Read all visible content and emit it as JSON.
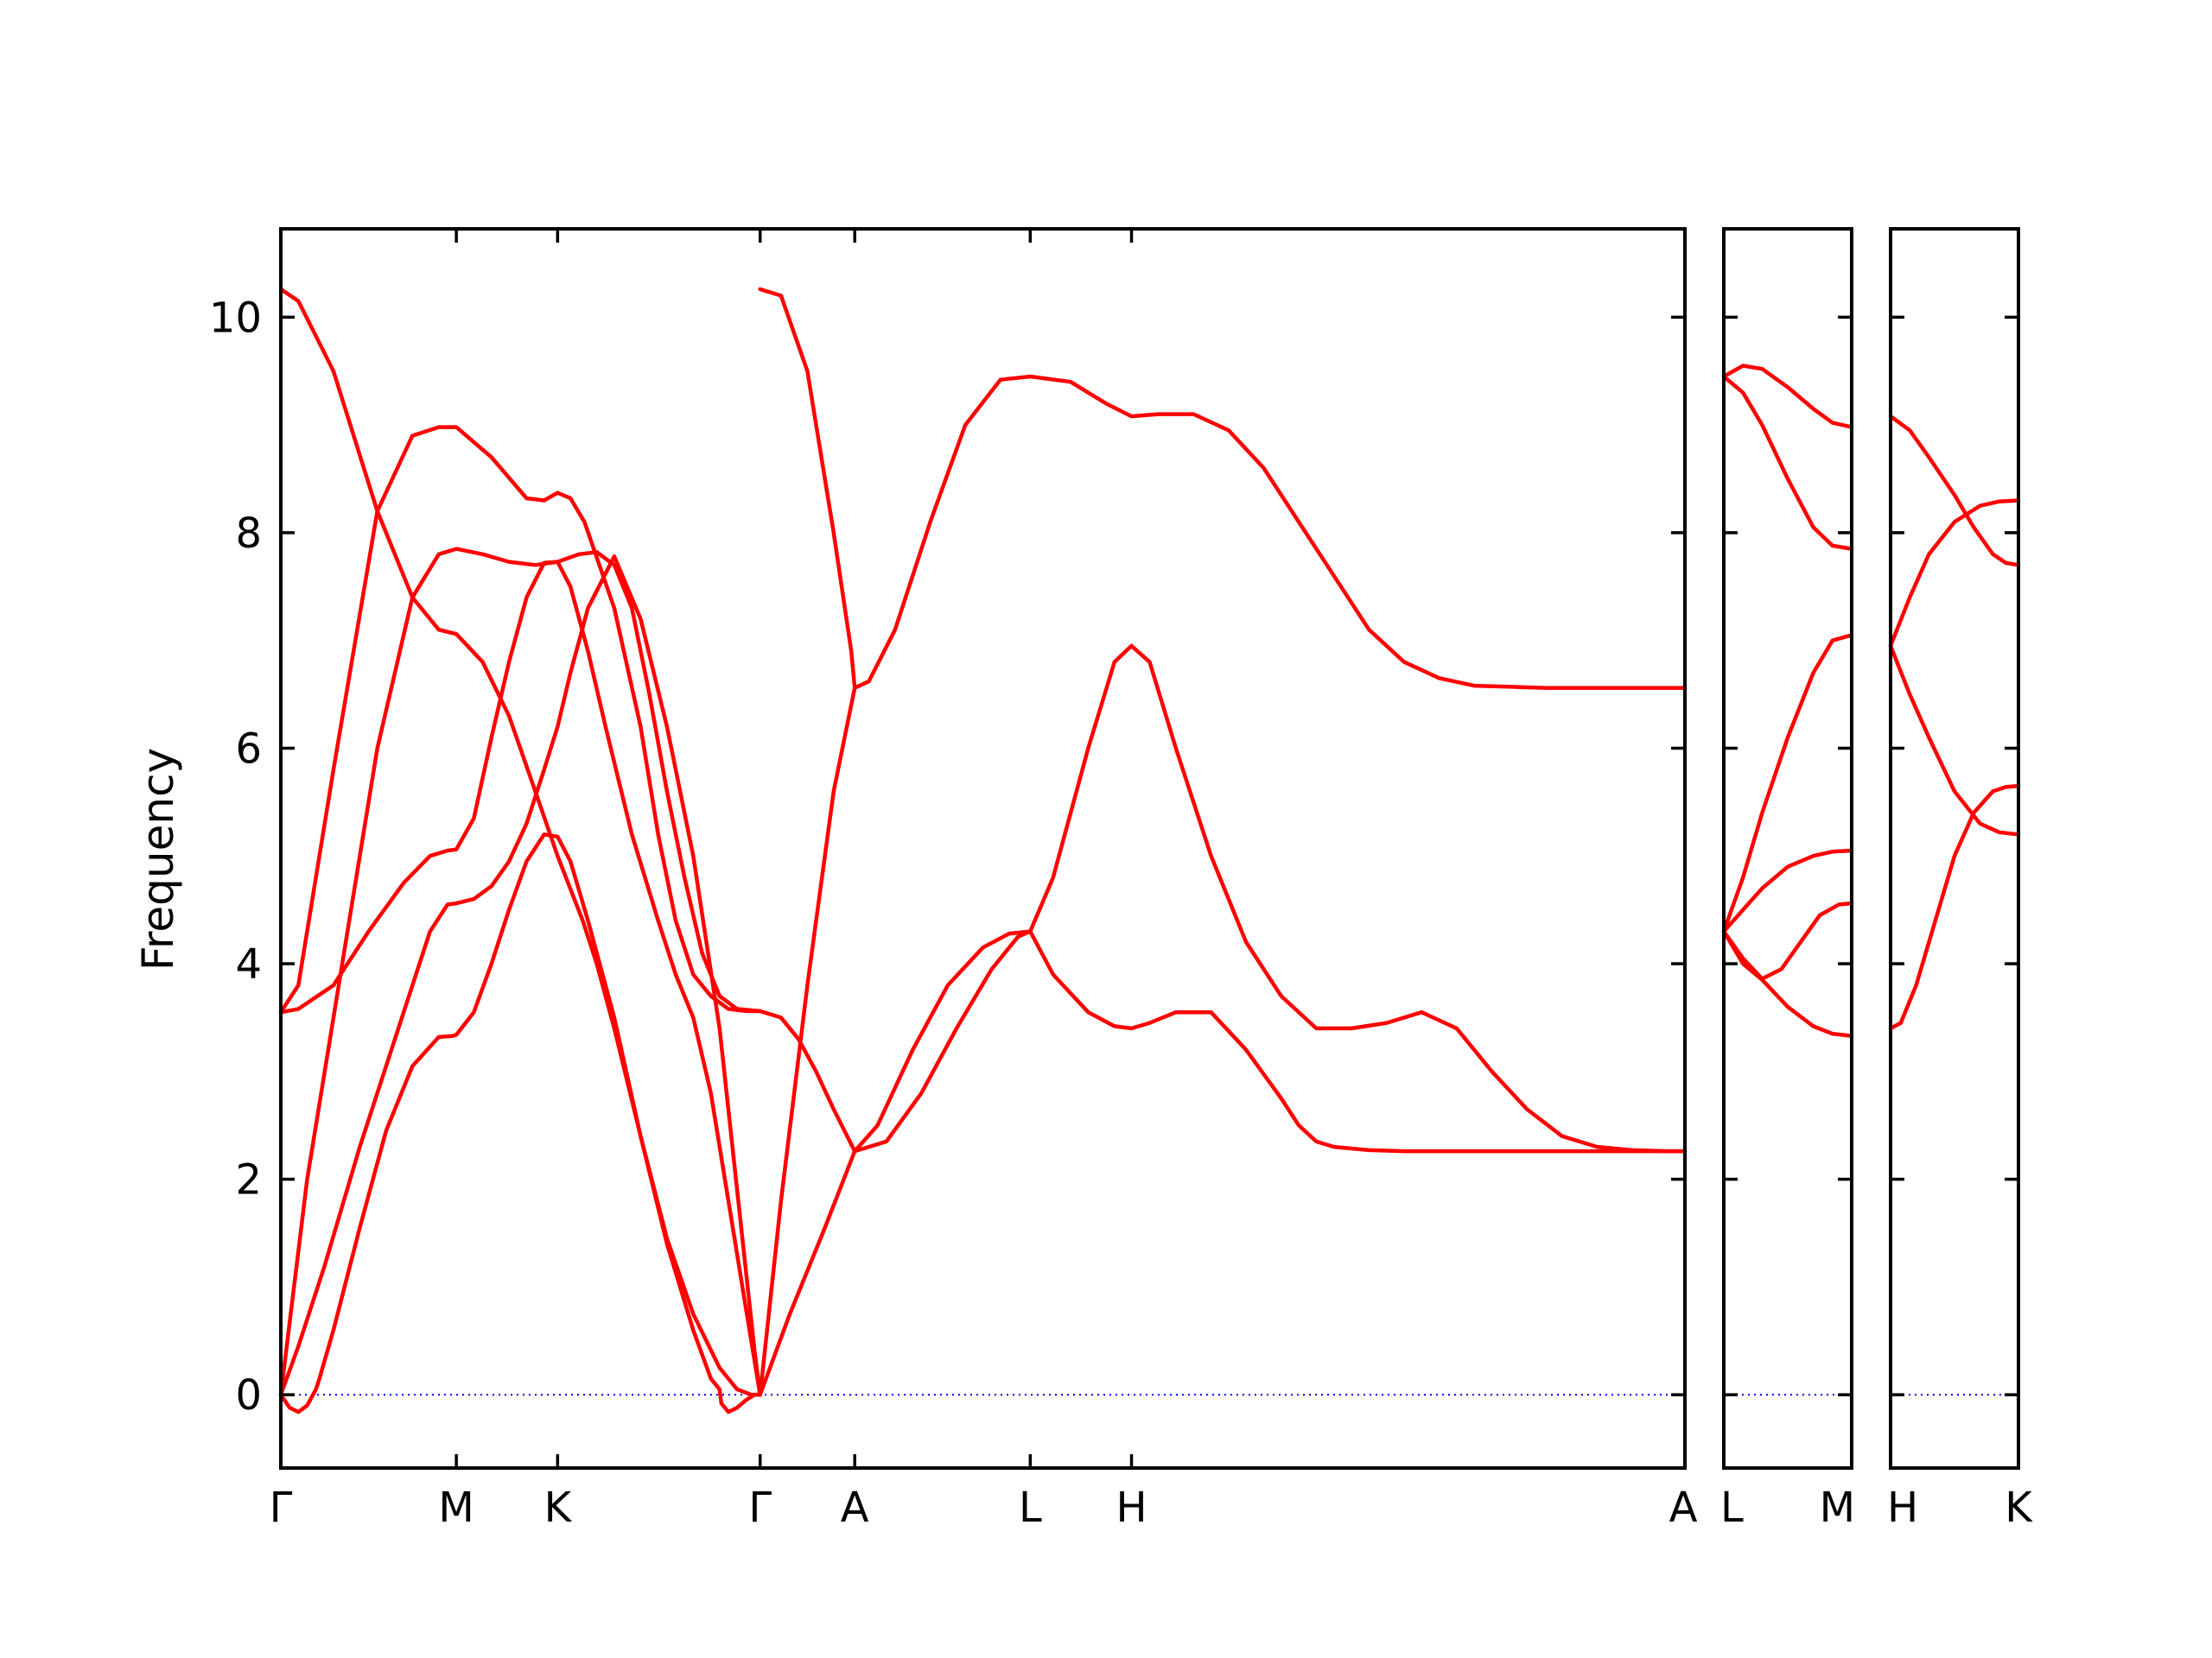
{
  "chart_data": {
    "type": "line",
    "ylabel": "Frequency",
    "xlabel": "",
    "ylim": [
      -0.68,
      10.82
    ],
    "yticks": [
      0,
      2,
      4,
      6,
      8,
      10
    ],
    "ytick_labels": [
      "0",
      "2",
      "4",
      "6",
      "8",
      "10"
    ],
    "grid": false,
    "line_color": "#ff0000",
    "zero_line_color": "#0000ff",
    "panels": [
      {
        "name": "panel-main",
        "xlim": [
          0,
          8
        ],
        "xticks": [
          0,
          1,
          1.577,
          2.731,
          3.27,
          4.27,
          4.847,
          8
        ],
        "xtick_labels": [
          "Γ",
          "M",
          "K",
          "Γ",
          "A",
          "L",
          "H",
          "A"
        ],
        "series": [
          {
            "x": [
              0,
              0.1,
              0.3,
              0.55,
              0.75,
              0.9,
              1.0,
              1.15,
              1.3,
              1.45,
              1.577,
              1.72,
              1.8,
              1.9,
              2.05,
              2.2,
              2.35,
              2.5,
              2.6,
              2.68,
              2.731
            ],
            "y": [
              10.26,
              10.15,
              9.5,
              8.2,
              7.4,
              7.1,
              7.06,
              6.8,
              6.3,
              5.6,
              5.0,
              4.4,
              4.0,
              3.4,
              2.4,
              1.45,
              0.75,
              0.25,
              0.05,
              0.0,
              0.0
            ]
          },
          {
            "x": [
              0,
              0.1,
              0.3,
              0.55,
              0.75,
              0.9,
              1.0,
              1.2,
              1.4,
              1.5,
              1.577,
              1.65,
              1.73,
              1.9,
              2.05,
              2.15,
              2.25,
              2.35,
              2.45,
              2.55,
              2.65,
              2.731
            ],
            "y": [
              3.55,
              3.8,
              5.8,
              8.2,
              8.9,
              8.98,
              8.98,
              8.7,
              8.32,
              8.3,
              8.37,
              8.32,
              8.1,
              7.3,
              6.2,
              5.2,
              4.4,
              3.9,
              3.7,
              3.58,
              3.56,
              3.56
            ]
          },
          {
            "x": [
              0,
              0.15,
              0.35,
              0.55,
              0.75,
              0.9,
              1.0,
              1.15,
              1.3,
              1.45,
              1.577,
              1.7,
              1.8,
              1.9,
              2.0,
              2.1,
              2.2,
              2.3,
              2.4,
              2.5,
              2.6,
              2.731
            ],
            "y": [
              0.0,
              2.0,
              4.0,
              6.0,
              7.4,
              7.8,
              7.85,
              7.8,
              7.73,
              7.7,
              7.73,
              7.8,
              7.82,
              7.7,
              7.3,
              6.5,
              5.6,
              4.8,
              4.1,
              3.7,
              3.58,
              3.56
            ]
          },
          {
            "x": [
              0,
              0.1,
              0.3,
              0.5,
              0.7,
              0.85,
              0.95,
              1.0,
              1.1,
              1.2,
              1.3,
              1.4,
              1.5,
              1.577,
              1.65,
              1.75,
              1.85,
              2.0,
              2.15,
              2.25,
              2.35,
              2.45,
              2.55,
              2.65,
              2.731
            ],
            "y": [
              3.55,
              3.58,
              3.8,
              4.3,
              4.75,
              5.0,
              5.05,
              5.06,
              5.35,
              6.1,
              6.8,
              7.4,
              7.72,
              7.73,
              7.5,
              6.9,
              6.2,
              5.2,
              4.4,
              3.9,
              3.5,
              2.8,
              1.8,
              0.8,
              0.0
            ]
          },
          {
            "x": [
              0,
              0.1,
              0.25,
              0.45,
              0.65,
              0.85,
              0.95,
              1.0,
              1.1,
              1.2,
              1.3,
              1.4,
              1.5,
              1.577,
              1.65,
              1.75,
              1.9,
              2.05,
              2.2,
              2.35,
              2.5,
              2.6,
              2.7,
              2.731
            ],
            "y": [
              0.0,
              0.45,
              1.2,
              2.3,
              3.3,
              4.3,
              4.55,
              4.56,
              4.6,
              4.72,
              4.95,
              5.3,
              5.8,
              6.2,
              6.7,
              7.3,
              7.78,
              7.2,
              6.2,
              5.0,
              3.4,
              1.9,
              0.4,
              0.0
            ]
          },
          {
            "x": [
              0,
              0.05,
              0.1,
              0.15,
              0.2,
              0.22,
              0.3,
              0.45,
              0.6,
              0.75,
              0.9,
              0.98,
              1.0,
              1.1,
              1.2,
              1.3,
              1.4,
              1.5,
              1.577,
              1.65,
              1.75,
              1.9,
              2.05,
              2.2,
              2.35,
              2.45,
              2.5,
              2.51,
              2.55,
              2.6,
              2.65,
              2.7,
              2.731
            ],
            "y": [
              0.0,
              -0.12,
              -0.16,
              -0.1,
              0.05,
              0.15,
              0.6,
              1.55,
              2.45,
              3.05,
              3.32,
              3.33,
              3.34,
              3.55,
              4.0,
              4.5,
              4.95,
              5.2,
              5.18,
              4.95,
              4.4,
              3.5,
              2.4,
              1.4,
              0.6,
              0.15,
              0.05,
              -0.08,
              -0.16,
              -0.12,
              -0.05,
              0.0,
              0.0
            ]
          },
          {
            "x": [
              2.731,
              2.85,
              3.0,
              3.15,
              3.25,
              3.27,
              3.35,
              3.5,
              3.7,
              3.9,
              4.1,
              4.27,
              4.5,
              4.7,
              4.847,
              5.0,
              5.2,
              5.4,
              5.6,
              5.8,
              6.0,
              6.2,
              6.4,
              6.6,
              6.8,
              7.0,
              7.2,
              7.4,
              7.6,
              7.8,
              8.0
            ],
            "y": [
              10.26,
              10.2,
              9.5,
              8.0,
              6.9,
              6.56,
              6.62,
              7.1,
              8.1,
              9.0,
              9.42,
              9.45,
              9.4,
              9.2,
              9.08,
              9.1,
              9.1,
              8.95,
              8.6,
              8.1,
              7.6,
              7.1,
              6.8,
              6.65,
              6.58,
              6.57,
              6.56,
              6.56,
              6.56,
              6.56,
              6.56
            ]
          },
          {
            "x": [
              2.731,
              2.85,
              2.95,
              3.05,
              3.15,
              3.27
            ],
            "y": [
              3.56,
              3.5,
              3.3,
              3.0,
              2.65,
              2.26
            ]
          },
          {
            "x": [
              2.731,
              2.85,
              3.0,
              3.15,
              3.27
            ],
            "y": [
              0.0,
              1.8,
              3.8,
              5.6,
              6.56
            ]
          },
          {
            "x": [
              2.731,
              2.9,
              3.1,
              3.27
            ],
            "y": [
              0.0,
              0.75,
              1.55,
              2.26
            ]
          },
          {
            "x": [
              3.27,
              3.4,
              3.6,
              3.8,
              4.0,
              4.15,
              4.27,
              4.4,
              4.6,
              4.75,
              4.847,
              4.95,
              5.1,
              5.3,
              5.5,
              5.7,
              5.9,
              6.1,
              6.3,
              6.5,
              6.7,
              6.9,
              7.1,
              7.3,
              7.5,
              7.7,
              7.9,
              8.0
            ],
            "y": [
              2.26,
              2.5,
              3.2,
              3.8,
              4.15,
              4.28,
              4.3,
              4.8,
              6.0,
              6.8,
              6.95,
              6.8,
              6.0,
              5.0,
              4.2,
              3.7,
              3.4,
              3.4,
              3.45,
              3.55,
              3.4,
              3.0,
              2.65,
              2.4,
              2.3,
              2.27,
              2.26,
              2.26
            ]
          },
          {
            "x": [
              3.27,
              3.45,
              3.65,
              3.85,
              4.05,
              4.2,
              4.27,
              4.4,
              4.6,
              4.75,
              4.847,
              4.95,
              5.1,
              5.3,
              5.5,
              5.7,
              5.8,
              5.9,
              6.0,
              6.2,
              6.4,
              6.6,
              6.8,
              7.0,
              7.2,
              7.4,
              7.6,
              7.8,
              8.0
            ],
            "y": [
              2.26,
              2.35,
              2.8,
              3.4,
              3.95,
              4.25,
              4.3,
              3.9,
              3.55,
              3.42,
              3.4,
              3.45,
              3.55,
              3.55,
              3.2,
              2.75,
              2.5,
              2.35,
              2.3,
              2.27,
              2.26,
              2.26,
              2.26,
              2.26,
              2.26,
              2.26,
              2.26,
              2.26,
              2.26
            ]
          }
        ]
      },
      {
        "name": "panel-l-m",
        "xlim": [
          0,
          1
        ],
        "xticks": [
          0,
          1
        ],
        "xtick_labels": [
          "L",
          "M"
        ],
        "series": [
          {
            "x": [
              0,
              0.15,
              0.3,
              0.5,
              0.7,
              0.85,
              1.0
            ],
            "y": [
              9.45,
              9.55,
              9.52,
              9.35,
              9.15,
              9.02,
              8.98
            ]
          },
          {
            "x": [
              0,
              0.15,
              0.3,
              0.5,
              0.7,
              0.85,
              1.0
            ],
            "y": [
              9.45,
              9.3,
              9.0,
              8.5,
              8.05,
              7.88,
              7.85
            ]
          },
          {
            "x": [
              0,
              0.15,
              0.3,
              0.5,
              0.7,
              0.85,
              1.0
            ],
            "y": [
              4.3,
              4.8,
              5.4,
              6.1,
              6.7,
              7.0,
              7.05
            ]
          },
          {
            "x": [
              0,
              0.15,
              0.3,
              0.5,
              0.7,
              0.85,
              1.0
            ],
            "y": [
              4.3,
              4.5,
              4.7,
              4.9,
              5.0,
              5.04,
              5.05
            ]
          },
          {
            "x": [
              0,
              0.15,
              0.3,
              0.45,
              0.6,
              0.75,
              0.9,
              1.0
            ],
            "y": [
              4.3,
              4.05,
              3.86,
              3.95,
              4.2,
              4.45,
              4.55,
              4.56
            ]
          },
          {
            "x": [
              0,
              0.15,
              0.3,
              0.5,
              0.7,
              0.85,
              1.0
            ],
            "y": [
              4.3,
              4.0,
              3.85,
              3.6,
              3.42,
              3.35,
              3.33
            ]
          }
        ]
      },
      {
        "name": "panel-h-k",
        "xlim": [
          0,
          1
        ],
        "xticks": [
          0,
          1
        ],
        "xtick_labels": [
          "H",
          "K"
        ],
        "series": [
          {
            "x": [
              0,
              0.15,
              0.3,
              0.5,
              0.65,
              0.8,
              0.9,
              1.0
            ],
            "y": [
              9.08,
              8.95,
              8.7,
              8.35,
              8.05,
              7.8,
              7.72,
              7.7
            ]
          },
          {
            "x": [
              0,
              0.15,
              0.3,
              0.5,
              0.7,
              0.85,
              1.0
            ],
            "y": [
              6.95,
              7.4,
              7.8,
              8.1,
              8.25,
              8.29,
              8.3
            ]
          },
          {
            "x": [
              0,
              0.15,
              0.3,
              0.5,
              0.7,
              0.85,
              1.0
            ],
            "y": [
              6.95,
              6.5,
              6.1,
              5.6,
              5.3,
              5.22,
              5.2
            ]
          },
          {
            "x": [
              0,
              0.08,
              0.2,
              0.35,
              0.5,
              0.65,
              0.8,
              0.9,
              1.0
            ],
            "y": [
              3.4,
              3.45,
              3.8,
              4.4,
              5.0,
              5.4,
              5.6,
              5.64,
              5.65
            ]
          }
        ]
      }
    ]
  }
}
